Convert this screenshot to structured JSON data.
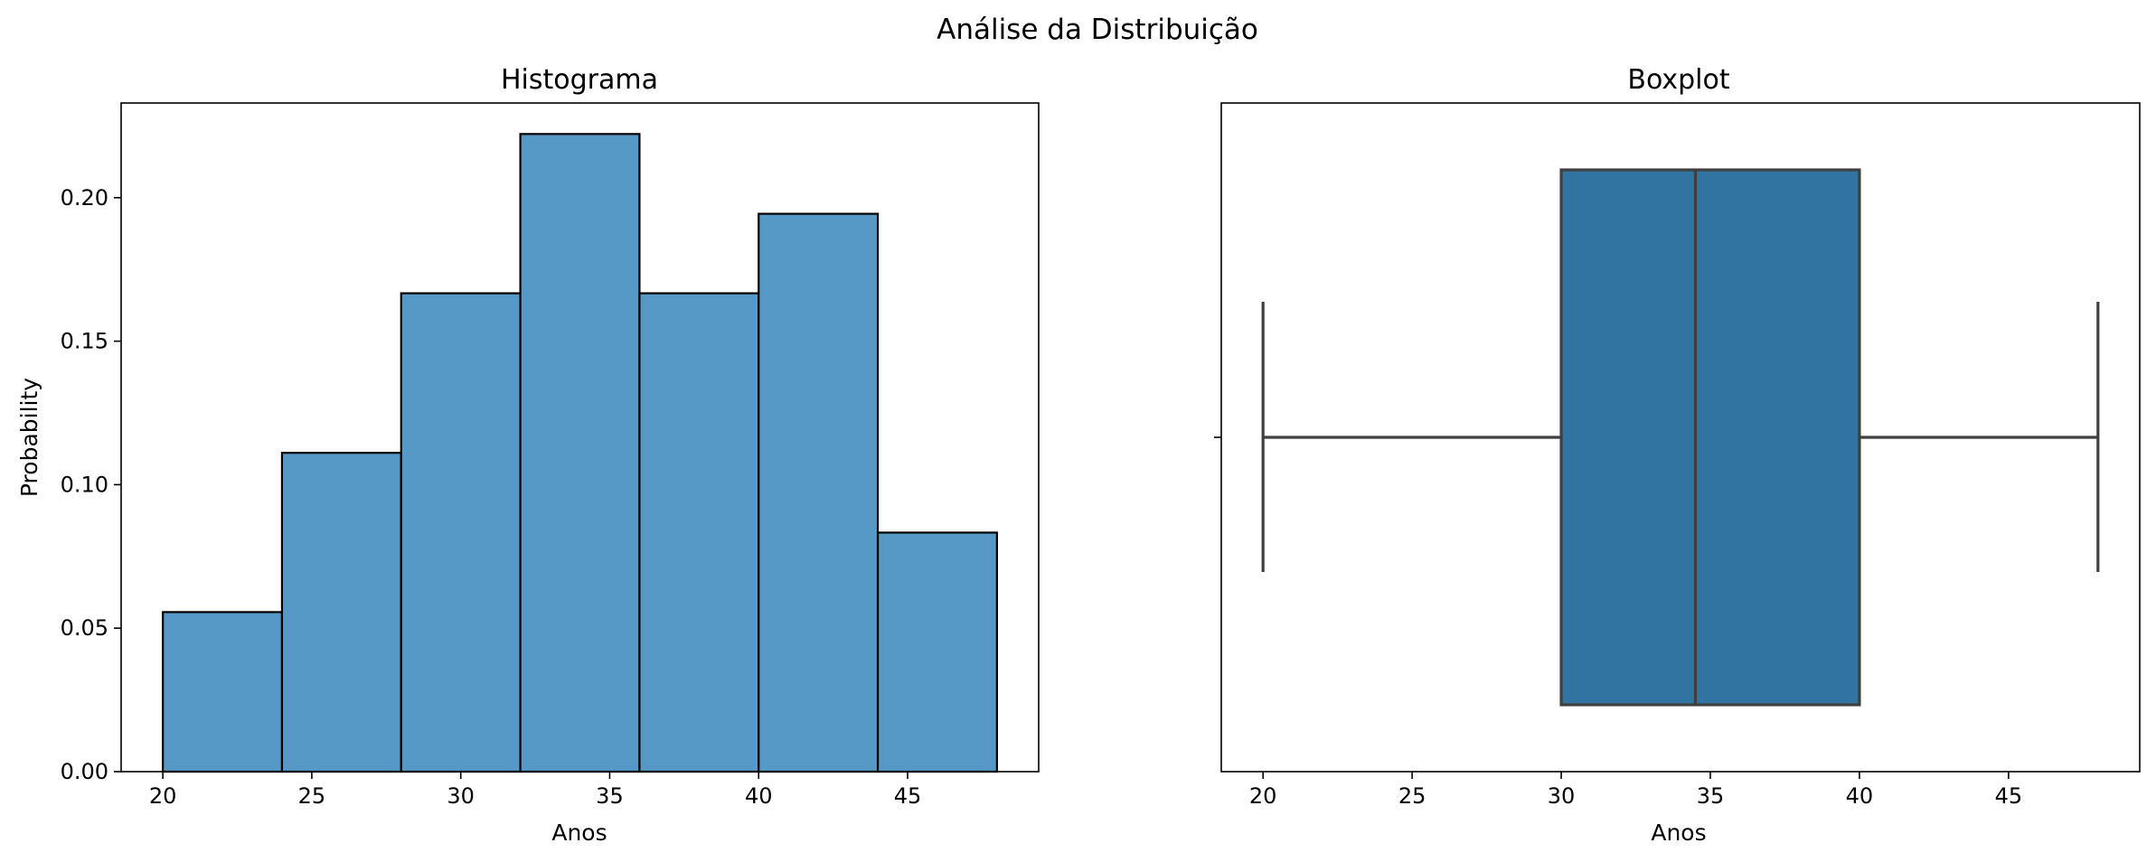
{
  "suptitle": "Análise da Distribuição",
  "chart_data": [
    {
      "type": "bar",
      "subtype": "histogram",
      "title": "Histograma",
      "xlabel": "Anos",
      "ylabel": "Probability",
      "bin_edges": [
        20,
        24,
        28,
        32,
        36,
        40,
        44,
        48
      ],
      "values": [
        0.0556,
        0.1111,
        0.1667,
        0.2222,
        0.1667,
        0.1944,
        0.0833
      ],
      "xlim": [
        18.6,
        49.4
      ],
      "ylim": [
        0,
        0.233
      ],
      "xticks": [
        20,
        25,
        30,
        35,
        40,
        45
      ],
      "xtick_labels": [
        "20",
        "25",
        "30",
        "35",
        "40",
        "45"
      ],
      "yticks": [
        0,
        0.05,
        0.1,
        0.15,
        0.2
      ],
      "ytick_labels": [
        "0.00",
        "0.05",
        "0.10",
        "0.15",
        "0.20"
      ],
      "bar_color": "#5799C6",
      "edge_color": "#000000",
      "grid": false
    },
    {
      "type": "boxplot",
      "title": "Boxplot",
      "xlabel": "Anos",
      "ylabel": "",
      "min": 20,
      "q1": 30,
      "median": 34.5,
      "q3": 40,
      "max": 48,
      "xlim": [
        18.6,
        49.4
      ],
      "xticks": [
        20,
        25,
        30,
        35,
        40,
        45
      ],
      "xtick_labels": [
        "20",
        "25",
        "30",
        "35",
        "40",
        "45"
      ],
      "box_color": "#3274A1",
      "line_color": "#3F3F3F",
      "grid": false
    }
  ]
}
